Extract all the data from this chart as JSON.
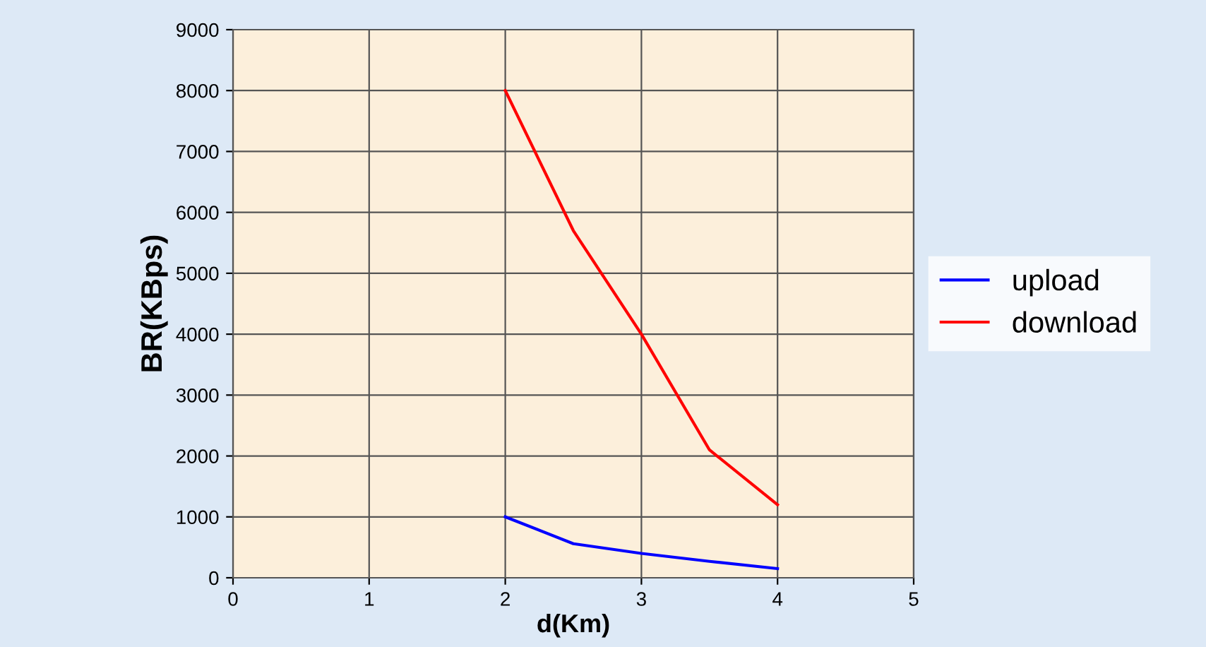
{
  "chart_data": {
    "type": "line",
    "xlabel": "d(Km)",
    "ylabel": "BR(KBps)",
    "xlim": [
      0,
      5
    ],
    "xticks": [
      0,
      1,
      2,
      3,
      4,
      5
    ],
    "ylim": [
      0,
      9000
    ],
    "yticks": [
      0,
      1000,
      2000,
      3000,
      4000,
      5000,
      6000,
      7000,
      8000,
      9000
    ],
    "grid": true,
    "legend": "right",
    "marker": "none",
    "line_style": "solid",
    "series": [
      {
        "name": "upload",
        "color": "#0000ff",
        "x": [
          2,
          2.5,
          3,
          3.5,
          4
        ],
        "values": [
          1000,
          560,
          400,
          270,
          150
        ]
      },
      {
        "name": "download",
        "color": "#ff0000",
        "x": [
          2,
          2.5,
          3,
          3.5,
          4
        ],
        "values": [
          8000,
          5700,
          4000,
          2100,
          1200
        ]
      }
    ]
  }
}
